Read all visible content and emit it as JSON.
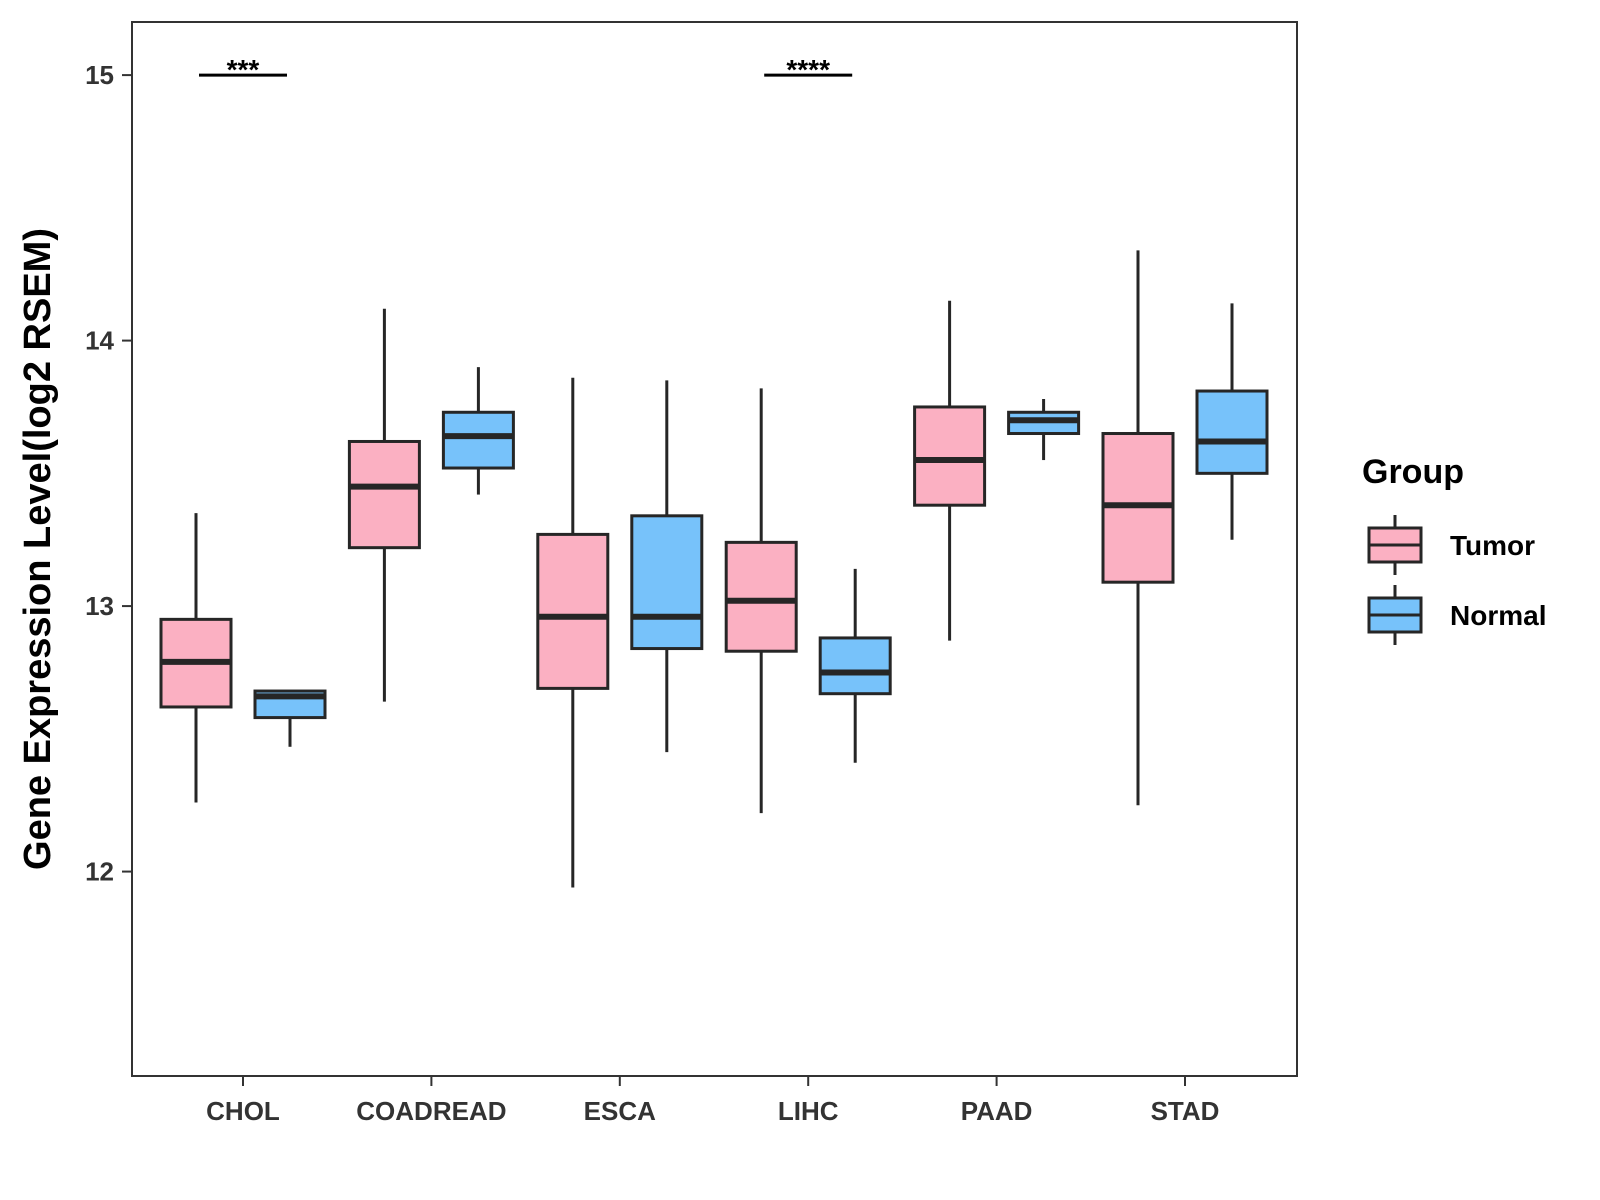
{
  "chart_data": {
    "type": "boxplot",
    "title": "",
    "xlabel": "",
    "ylabel": "Gene Expression Level(log2 RSEM)",
    "ylim": [
      11.23,
      15.2
    ],
    "yticks": [
      12,
      13,
      14,
      15
    ],
    "grid": false,
    "legend_position": "right",
    "legend_title": "Group",
    "categories": [
      "CHOL",
      "COADREAD",
      "ESCA",
      "LIHC",
      "PAAD",
      "STAD"
    ],
    "series": [
      {
        "name": "Tumor",
        "color": "#FBB0C2",
        "boxes": [
          {
            "whisker_low": 12.26,
            "q1": 12.62,
            "median": 12.79,
            "q3": 12.95,
            "whisker_high": 13.35
          },
          {
            "whisker_low": 12.64,
            "q1": 13.22,
            "median": 13.45,
            "q3": 13.62,
            "whisker_high": 14.12
          },
          {
            "whisker_low": 11.94,
            "q1": 12.69,
            "median": 12.96,
            "q3": 13.27,
            "whisker_high": 13.86
          },
          {
            "whisker_low": 12.22,
            "q1": 12.83,
            "median": 13.02,
            "q3": 13.24,
            "whisker_high": 13.82
          },
          {
            "whisker_low": 12.87,
            "q1": 13.38,
            "median": 13.55,
            "q3": 13.75,
            "whisker_high": 14.15
          },
          {
            "whisker_low": 12.25,
            "q1": 13.09,
            "median": 13.38,
            "q3": 13.65,
            "whisker_high": 14.34
          }
        ]
      },
      {
        "name": "Normal",
        "color": "#77C2FA",
        "boxes": [
          {
            "whisker_low": 12.47,
            "q1": 12.58,
            "median": 12.66,
            "q3": 12.68,
            "whisker_high": 12.68
          },
          {
            "whisker_low": 13.42,
            "q1": 13.52,
            "median": 13.64,
            "q3": 13.73,
            "whisker_high": 13.9
          },
          {
            "whisker_low": 12.45,
            "q1": 12.84,
            "median": 12.96,
            "q3": 13.34,
            "whisker_high": 13.85
          },
          {
            "whisker_low": 12.41,
            "q1": 12.67,
            "median": 12.75,
            "q3": 12.88,
            "whisker_high": 13.14
          },
          {
            "whisker_low": 13.55,
            "q1": 13.65,
            "median": 13.7,
            "q3": 13.73,
            "whisker_high": 13.78
          },
          {
            "whisker_low": 13.25,
            "q1": 13.5,
            "median": 13.62,
            "q3": 13.81,
            "whisker_high": 14.14
          }
        ]
      }
    ],
    "annotations": [
      {
        "category": "CHOL",
        "label": "***",
        "y": 15.0
      },
      {
        "category": "LIHC",
        "label": "****",
        "y": 15.0
      }
    ]
  },
  "colors": {
    "outline": "#262626",
    "axis": "#333333",
    "tick_text": "#333333"
  }
}
